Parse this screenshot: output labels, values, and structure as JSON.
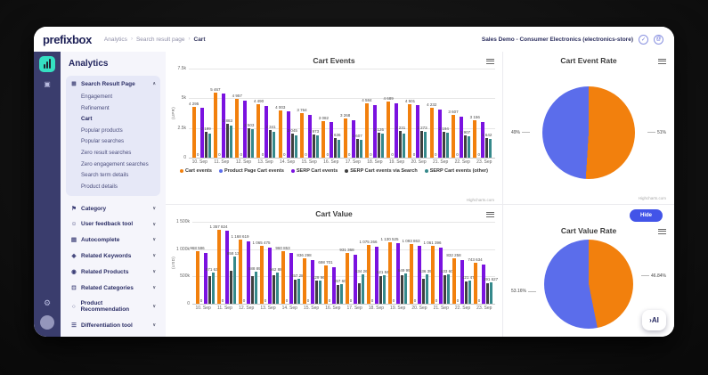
{
  "header": {
    "logo": "prefixbox",
    "breadcrumb": [
      "Analytics",
      "Search result page",
      "Cart"
    ],
    "breadcrumb_separator": "›",
    "account_label": "Sales Demo - Consumer Electronics (electronics-store)",
    "check_icon_glyph": "✓",
    "account_icon_glyph": "@"
  },
  "rail": {
    "dashboard_icon_glyph": "▣",
    "settings_icon_glyph": "⚙"
  },
  "sidebar": {
    "title": "Analytics",
    "expanded_group": {
      "label": "Search Result Page",
      "icon_glyph": "⊞",
      "chevron": "∧",
      "active_item": "Cart",
      "items": [
        "Engagement",
        "Refinement",
        "Cart",
        "Popular products",
        "Popular searches",
        "Zero result searches",
        "Zero engagement searches",
        "Search term details",
        "Product details"
      ]
    },
    "chevron_down": "∨",
    "collapsed_groups": [
      {
        "label": "Category",
        "icon_glyph": "⚑"
      },
      {
        "label": "User feedback tool",
        "icon_glyph": "☺"
      },
      {
        "label": "Autocomplete",
        "icon_glyph": "▤"
      },
      {
        "label": "Related Keywords",
        "icon_glyph": "◈"
      },
      {
        "label": "Related Products",
        "icon_glyph": "◉"
      },
      {
        "label": "Related Categories",
        "icon_glyph": "⊡"
      },
      {
        "label": "Product Recommendation",
        "icon_glyph": "○"
      },
      {
        "label": "Differentiation tool",
        "icon_glyph": "☰"
      }
    ]
  },
  "main": {
    "hide_button": "Hide",
    "ai_button": "›AI",
    "credit": "Highcharts.com"
  },
  "colors": {
    "orange": "#f2800d",
    "blue": "#5b6deb",
    "purple": "#7a12e0",
    "dark": "#3f3f3f",
    "teal": "#35898b",
    "accent_teal": "#35e0c2",
    "rail_bg": "#3a3d6d",
    "hide_button_bg": "#4254e8"
  },
  "chart_data": [
    {
      "type": "bar",
      "title": "Cart Events",
      "ylabel": "(UPR)",
      "yticks": [
        "7.5k",
        "5k",
        "2.5k",
        "0"
      ],
      "ymax": 7500,
      "legend_visible": true,
      "label_series": [
        0,
        1,
        3
      ],
      "categories": [
        "10. Sep",
        "11. Sep",
        "12. Sep",
        "13. Sep",
        "14. Sep",
        "15. Sep",
        "16. Sep",
        "17. Sep",
        "18. Sep",
        "19. Sep",
        "20. Sep",
        "21. Sep",
        "22. Sep",
        "23. Sep"
      ],
      "series": [
        {
          "name": "Cart events",
          "color": "#f2800d",
          "values": [
            4295,
            5467,
            4957,
            4490,
            4003,
            3764,
            3082,
            3268,
            4584,
            4689,
            4501,
            4232,
            3607,
            3156
          ]
        },
        {
          "name": "Product Page Cart events",
          "color": "#5b6deb",
          "values": [
            0,
            0,
            0,
            0,
            0,
            0,
            0,
            0,
            0,
            0,
            0,
            0,
            0,
            0
          ]
        },
        {
          "name": "SERP Cart events",
          "color": "#7a12e0",
          "values": [
            4180,
            5390,
            4820,
            4350,
            3870,
            3620,
            2980,
            3120,
            4460,
            4540,
            4390,
            4060,
            3470,
            3010
          ]
        },
        {
          "name": "SERP Cart events via Search",
          "color": "#3f3f3f",
          "values": [
            2199,
            2883,
            2503,
            2341,
            2045,
            1973,
            1636,
            1607,
            2126,
            2231,
            2273,
            2194,
            1907,
            1642
          ]
        },
        {
          "name": "SERP Cart events (other)",
          "color": "#35898b",
          "values": [
            2050,
            2710,
            2370,
            2210,
            1910,
            1840,
            1510,
            1490,
            2010,
            2060,
            2150,
            2070,
            1790,
            1550
          ]
        }
      ]
    },
    {
      "type": "pie",
      "title": "Cart Event Rate",
      "slices": [
        {
          "label": "51%",
          "value": 51,
          "color": "#f2800d",
          "side": "right"
        },
        {
          "label": "49%",
          "value": 49,
          "color": "#5b6deb",
          "side": "left"
        }
      ]
    },
    {
      "type": "bar",
      "title": "Cart Value",
      "ylabel": "(USD)",
      "yticks": [
        "1 500k",
        "1 000k",
        "500k",
        "0"
      ],
      "ymax": 1500000,
      "legend_visible": false,
      "label_series": [
        0,
        1,
        4
      ],
      "categories": [
        "10. Sep",
        "11. Sep",
        "12. Sep",
        "13. Sep",
        "14. Sep",
        "15. Sep",
        "16. Sep",
        "17. Sep",
        "18. Sep",
        "19. Sep",
        "20. Sep",
        "21. Sep",
        "22. Sep",
        "23. Sep"
      ],
      "series": [
        {
          "name": "",
          "color": "#f2800d",
          "values": [
            968586,
            1357824,
            1168619,
            1065475,
            960853,
            836298,
            698701,
            931368,
            1075266,
            1130525,
            1093863,
            1061396,
            832258,
            743634
          ]
        },
        {
          "name": "",
          "color": "#5b6deb",
          "values": [
            0,
            0,
            0,
            0,
            0,
            0,
            0,
            0,
            0,
            0,
            0,
            0,
            0,
            0
          ]
        },
        {
          "name": "",
          "color": "#7a12e0",
          "values": [
            935212,
            1331978,
            1140330,
            1034562,
            927845,
            806112,
            671903,
            903420,
            1041788,
            1103654,
            1062911,
            1024587,
            802944,
            713288
          ]
        },
        {
          "name": "",
          "color": "#3f3f3f",
          "values": [
            498321,
            602876,
            511904,
            517632,
            448210,
            423955,
            338476,
            376120,
            505882,
            527431,
            451996,
            515720,
            414308,
            367854
          ]
        },
        {
          "name": "",
          "color": "#35898b",
          "values": [
            571634,
            858137,
            588895,
            562886,
            457280,
            429963,
            357604,
            534266,
            521846,
            549991,
            536397,
            533603,
            421474,
            391627
          ]
        }
      ]
    },
    {
      "type": "pie",
      "title": "Cart Value Rate",
      "slices": [
        {
          "label": "46.84%",
          "value": 46.84,
          "color": "#f2800d",
          "side": "right"
        },
        {
          "label": "53.16%",
          "value": 53.16,
          "color": "#5b6deb",
          "side": "left"
        }
      ]
    }
  ]
}
